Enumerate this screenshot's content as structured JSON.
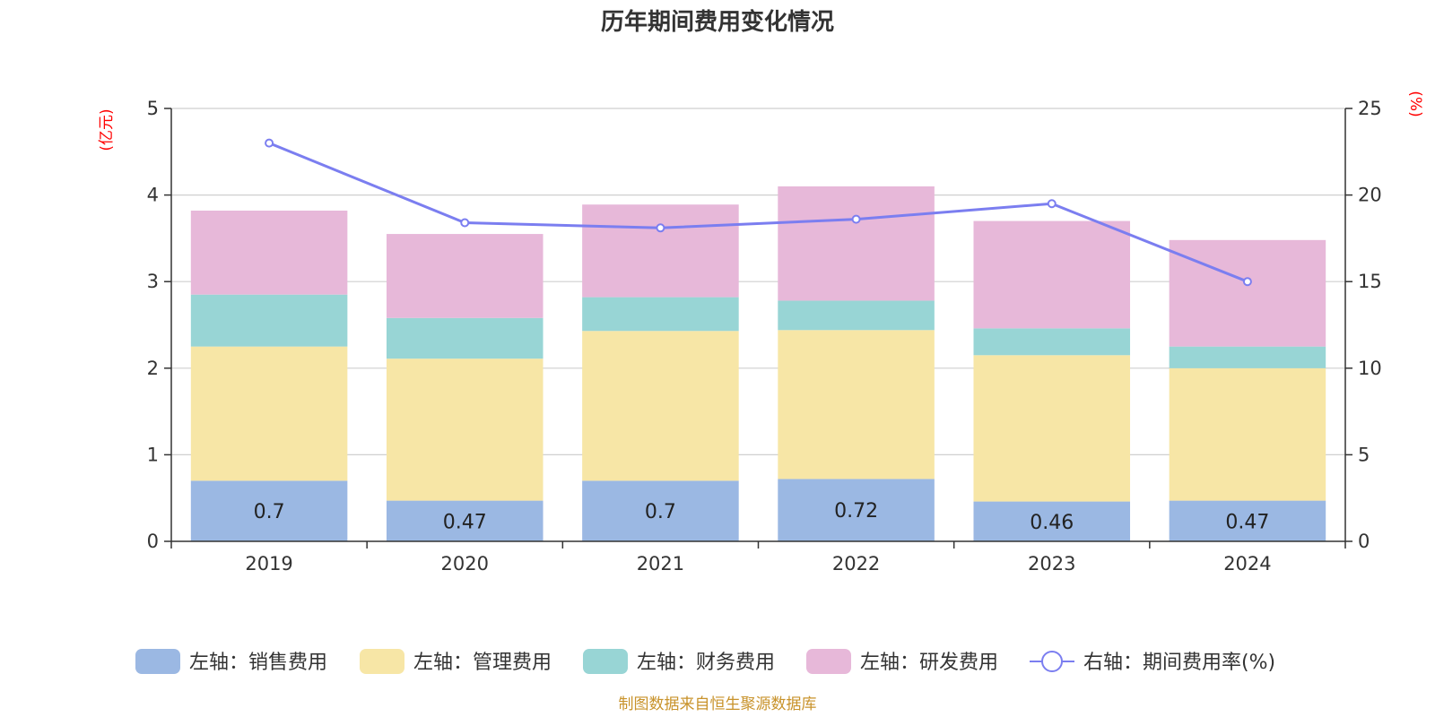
{
  "chart_data": {
    "type": "bar",
    "stacked": true,
    "title": "历年期间费用变化情况",
    "categories": [
      "2019",
      "2020",
      "2021",
      "2022",
      "2023",
      "2024"
    ],
    "left_axis": {
      "unit": "(亿元)",
      "ylim": [
        0,
        5
      ],
      "ticks": [
        "0",
        "1",
        "2",
        "3",
        "4",
        "5"
      ]
    },
    "right_axis": {
      "unit": "(%)",
      "ylim": [
        0,
        25
      ],
      "ticks": [
        "0",
        "5",
        "10",
        "15",
        "20",
        "25"
      ]
    },
    "grid": true,
    "series": [
      {
        "name": "左轴：销售费用",
        "axis": "left",
        "type": "bar",
        "color": "#9bb8e3",
        "values": [
          0.7,
          0.47,
          0.7,
          0.72,
          0.46,
          0.47
        ],
        "labels": [
          "0.7",
          "0.47",
          "0.7",
          "0.72",
          "0.46",
          "0.47"
        ]
      },
      {
        "name": "左轴：管理费用",
        "axis": "left",
        "type": "bar",
        "color": "#f7e6a6",
        "values": [
          1.55,
          1.64,
          1.73,
          1.72,
          1.69,
          1.53
        ]
      },
      {
        "name": "左轴：财务费用",
        "axis": "left",
        "type": "bar",
        "color": "#98d5d5",
        "values": [
          0.6,
          0.47,
          0.39,
          0.34,
          0.31,
          0.25
        ]
      },
      {
        "name": "左轴：研发费用",
        "axis": "left",
        "type": "bar",
        "color": "#e7b8d9",
        "values": [
          0.97,
          0.97,
          1.07,
          1.32,
          1.24,
          1.23
        ]
      },
      {
        "name": "右轴：期间费用率(%)",
        "axis": "right",
        "type": "line",
        "color": "#7b7ef0",
        "values": [
          23.0,
          18.4,
          18.1,
          18.6,
          19.5,
          15.0
        ]
      }
    ],
    "legend_position": "bottom-center"
  },
  "source_note": "制图数据来自恒生聚源数据库"
}
